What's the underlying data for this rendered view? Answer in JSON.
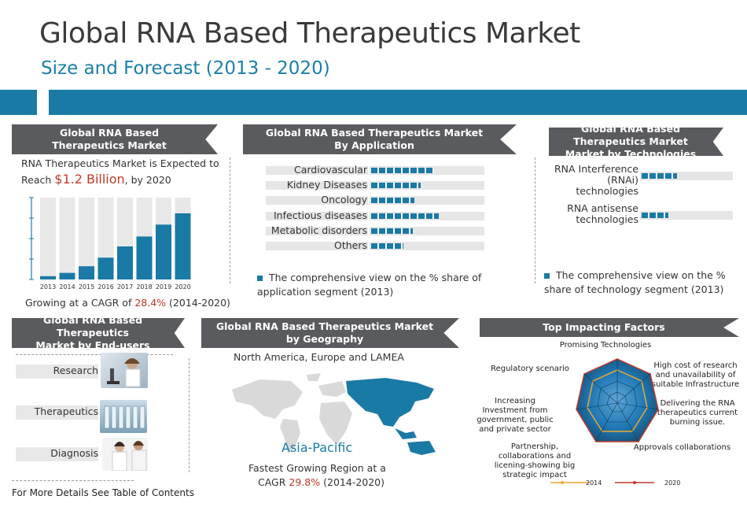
{
  "header": {
    "title": "Global RNA Based Therapeutics Market",
    "subtitle": "Size and Forecast (2013 - 2020)"
  },
  "market": {
    "header": "Global RNA Based Therapeutics Market",
    "line1": "RNA Therapeutics Market is Expected to",
    "reach_prefix": "Reach",
    "reach_value": "$1.2 Billion",
    "reach_suffix": ", by 2020",
    "cagr_prefix": "Growing at a CAGR of",
    "cagr_value": "28.4%",
    "cagr_suffix": "(2014-2020)"
  },
  "application": {
    "header_line1": "Global RNA Based Therapeutics Market",
    "header_line2": "By Application",
    "legend": "The comprehensive view on the % share of application segment (2013)",
    "items": [
      {
        "label": "Cardiovascular",
        "share": 0.55
      },
      {
        "label": "Kidney Diseases",
        "share": 0.43
      },
      {
        "label": "Oncology",
        "share": 0.38
      },
      {
        "label": "Infectious diseases",
        "share": 0.59
      },
      {
        "label": "Metabolic disorders",
        "share": 0.36
      },
      {
        "label": "Others",
        "share": 0.28
      }
    ]
  },
  "technology": {
    "header_line1": "Global RNA Based Therapeutics Market",
    "header_line2": "Market  by Technologies",
    "items": [
      {
        "label_line1": "RNA Interference",
        "label_line2": "(RNAi) technologies",
        "share": 0.38
      },
      {
        "label_line1": "RNA antisense",
        "label_line2": "technologies",
        "share": 0.29
      }
    ],
    "legend": "The comprehensive view on the % share of technology segment (2013)"
  },
  "end_users": {
    "header_line1": "Global RNA Based Therapeutics",
    "header_line2": "Market by End-users",
    "items": [
      "Research",
      "Therapeutics",
      "Diagnosis"
    ]
  },
  "geography": {
    "header_line1": "Global RNA Based Therapeutics Market",
    "header_line2": "by Geography",
    "regions": "North America, Europe and LAMEA",
    "highlight": "Asia-Pacific",
    "fastest_line1": "Fastest Growing Region at a",
    "cagr_prefix": "CAGR",
    "cagr_value": "29.8%",
    "cagr_suffix": "(2014-2020)"
  },
  "factors": {
    "header": "Top Impacting Factors",
    "axes": [
      "Promising Technologies",
      "High cost of research and unavailability of suitable Infrastructure",
      "Delivering the RNA therapeutics current burning issue.",
      "Approvals collaborations",
      "Partnership, collaborations and licening-showing big strategic impact",
      "Increasing Investment from government, public and private sector",
      "Regulatory scenario"
    ],
    "series": [
      {
        "name": "2014",
        "color": "#f0a830"
      },
      {
        "name": "2020",
        "color": "#c0392b"
      }
    ]
  },
  "footer": "For More Details See Table of Contents",
  "chart_data": {
    "type": "bar",
    "title": "",
    "categories": [
      "2013",
      "2014",
      "2015",
      "2016",
      "2017",
      "2018",
      "2019",
      "2020"
    ],
    "values": [
      0.05,
      0.1,
      0.2,
      0.33,
      0.5,
      0.65,
      0.83,
      1.0
    ],
    "xlabel": "",
    "ylabel": "",
    "grid": false
  },
  "colors": {
    "accent": "#1a7aa6",
    "header_gray": "#5a5b5e",
    "highlight_red": "#c0392b"
  }
}
